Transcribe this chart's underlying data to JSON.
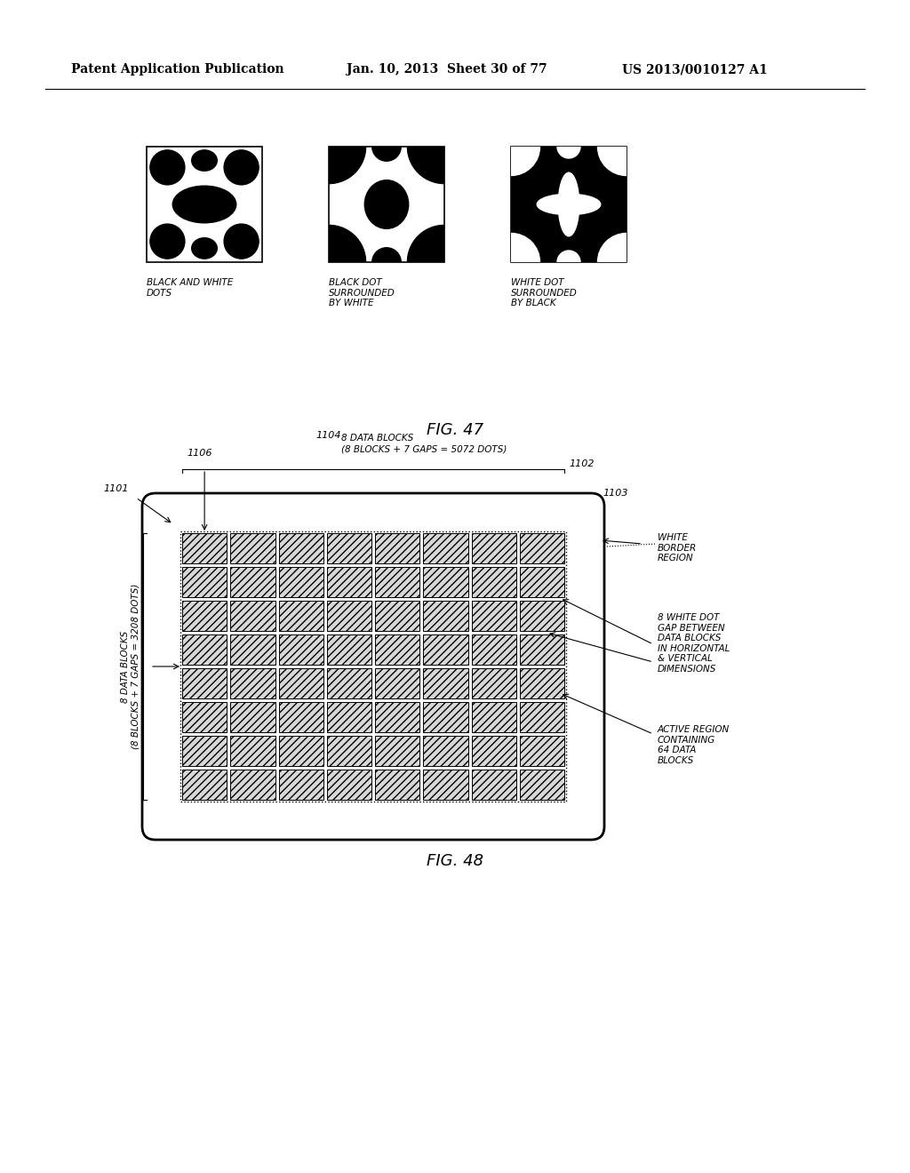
{
  "header_left": "Patent Application Publication",
  "header_mid": "Jan. 10, 2013  Sheet 30 of 77",
  "header_right": "US 2013/0010127 A1",
  "fig47_caption": "FIG. 47",
  "fig48_caption": "FIG. 48",
  "img1_label": "BLACK AND WHITE\nDOTS",
  "img2_label": "BLACK DOT\nSURROUNDED\nBY WHITE",
  "img3_label": "WHITE DOT\nSURROUNDED\nBY BLACK",
  "label_1101": "1101",
  "label_1102": "1102",
  "label_1103": "1103",
  "label_1104": "1104",
  "label_1106": "1106",
  "ann1": "8 DATA BLOCKS\n(8 BLOCKS + 7 GAPS = 5072 DOTS)",
  "ann2": "WHITE\nBORDER\nREGION",
  "ann3": "8 WHITE DOT\nGAP BETWEEN\nDATA BLOCKS\nIN HORIZONTAL\n& VERTICAL\nDIMENSIONS",
  "ann4": "ACTIVE REGION\nCONTAINING\n64 DATA\nBLOCKS",
  "ann_left": "8 DATA BLOCKS\n(8 BLOCKS + 7 GAPS = 3208 DOTS)",
  "bg_color": "#ffffff",
  "grid_color": "#000000",
  "hatch_color": "#888888"
}
